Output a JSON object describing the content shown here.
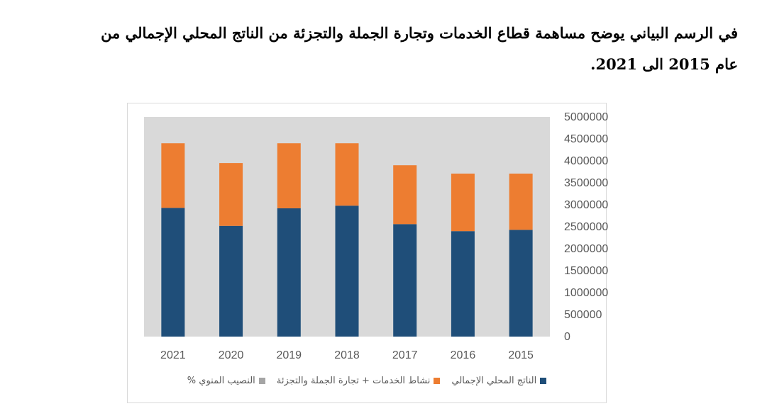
{
  "heading": {
    "line1": "في الرسم البياني يوضح مساهمة قطاع الخدمات وتجارة الجملة والتجزئة من الناتج المحلي الإجمالي من",
    "line2": "عام 2015 الى 2021."
  },
  "colors": {
    "plot_bg": "#d9d9d9",
    "gdp": "#1f4e79",
    "services": "#ed7d31",
    "percent": "#a5a5a5"
  },
  "chart_data": {
    "type": "bar",
    "stacked": true,
    "categories": [
      "2021",
      "2020",
      "2019",
      "2018",
      "2017",
      "2016",
      "2015"
    ],
    "series": [
      {
        "name": "الناتج المحلي الإجمالي",
        "values": [
          2930000,
          2520000,
          2920000,
          2980000,
          2560000,
          2400000,
          2430000
        ]
      },
      {
        "name": "نشاط الخدمات + تجارة الجملة والتجزئة",
        "values": [
          1470000,
          1430000,
          1480000,
          1420000,
          1340000,
          1310000,
          1280000
        ]
      },
      {
        "name": "النصيب المنوي %",
        "values": [
          0,
          0,
          0,
          0,
          0,
          0,
          0
        ]
      }
    ],
    "ylim": [
      0,
      5000000
    ],
    "yticks": [
      "0",
      "500000",
      "1000000",
      "1500000",
      "2000000",
      "2500000",
      "3000000",
      "3500000",
      "4000000",
      "4500000",
      "5000000"
    ],
    "y_axis_position": "right",
    "grid": false,
    "legend_position": "bottom",
    "title": "",
    "xlabel": "",
    "ylabel": ""
  },
  "legend": [
    {
      "label": "الناتج المحلي الإجمالي",
      "color": "#1f4e79"
    },
    {
      "label": "نشاط الخدمات + تجارة الجملة والتجزئة",
      "color": "#ed7d31"
    },
    {
      "label": "النصيب المنوي %",
      "color": "#a5a5a5"
    }
  ]
}
